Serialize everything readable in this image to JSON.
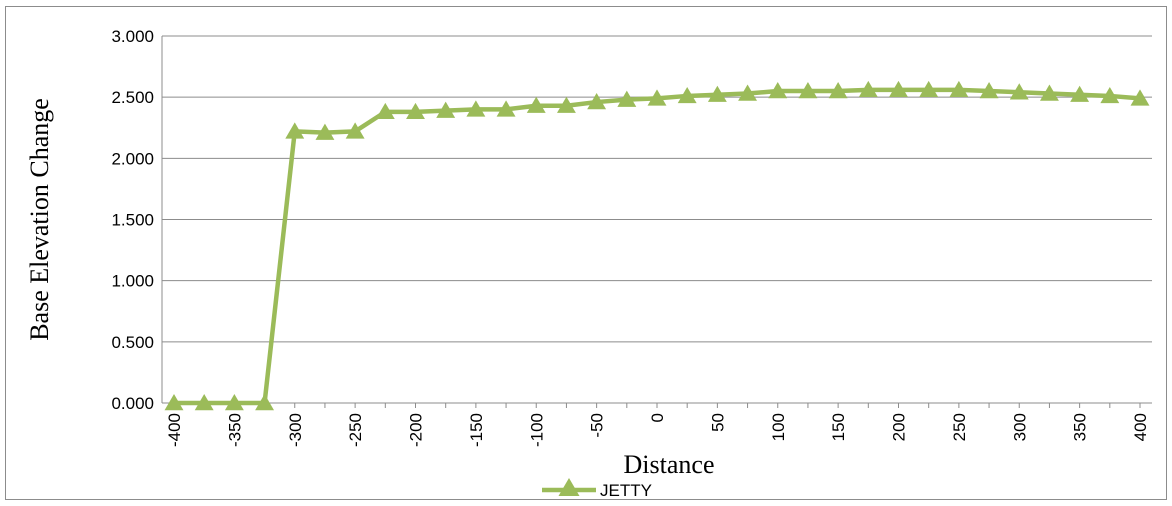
{
  "chart_data": {
    "type": "line",
    "xlabel": "Distance",
    "ylabel": "Base Elevation Change",
    "ylim": [
      0,
      3
    ],
    "y_ticks": [
      "0.000",
      "0.500",
      "1.000",
      "1.500",
      "2.000",
      "2.500",
      "3.000"
    ],
    "x_tick_labels": [
      "-400",
      "-350",
      "-300",
      "-250",
      "-200",
      "-150",
      "-100",
      "-50",
      "0",
      "50",
      "100",
      "150",
      "200",
      "250",
      "300",
      "350",
      "400"
    ],
    "grid": "horizontal",
    "legend_position": "bottom",
    "series": [
      {
        "name": "JETTY",
        "color": "#9bbb59",
        "marker": "triangle",
        "x": [
          -400,
          -375,
          -350,
          -325,
          -300,
          -275,
          -250,
          -225,
          -200,
          -175,
          -150,
          -125,
          -100,
          -75,
          -50,
          -25,
          0,
          25,
          50,
          75,
          100,
          125,
          150,
          175,
          200,
          225,
          250,
          275,
          300,
          325,
          350,
          375,
          400
        ],
        "values": [
          0,
          0,
          0,
          0,
          2.22,
          2.21,
          2.22,
          2.38,
          2.38,
          2.39,
          2.4,
          2.4,
          2.43,
          2.43,
          2.46,
          2.48,
          2.49,
          2.51,
          2.52,
          2.53,
          2.55,
          2.55,
          2.55,
          2.56,
          2.56,
          2.56,
          2.56,
          2.55,
          2.54,
          2.53,
          2.52,
          2.51,
          2.49
        ]
      }
    ]
  }
}
